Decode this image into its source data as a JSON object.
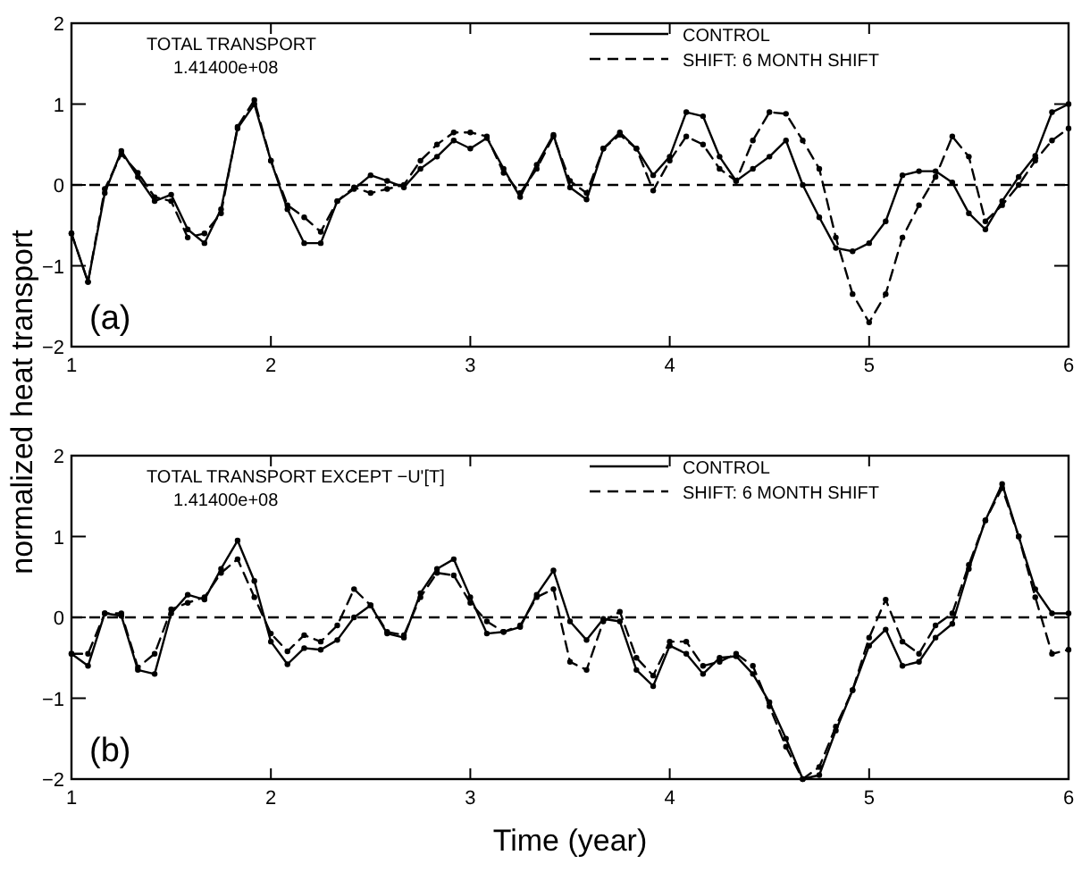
{
  "chart_data": [
    {
      "type": "line",
      "ylabel": "normalized heat transport",
      "annotations": [
        "TOTAL TRANSPORT",
        "1.41400e+08",
        "(a)"
      ],
      "x": [
        1,
        1.083,
        1.167,
        1.25,
        1.333,
        1.417,
        1.5,
        1.583,
        1.667,
        1.75,
        1.833,
        1.917,
        2,
        2.083,
        2.167,
        2.25,
        2.333,
        2.417,
        2.5,
        2.583,
        2.667,
        2.75,
        2.833,
        2.917,
        3,
        3.083,
        3.167,
        3.25,
        3.333,
        3.417,
        3.5,
        3.583,
        3.667,
        3.75,
        3.833,
        3.917,
        4,
        4.083,
        4.167,
        4.25,
        4.333,
        4.417,
        4.5,
        4.583,
        4.667,
        4.75,
        4.833,
        4.917,
        5,
        5.083,
        5.167,
        5.25,
        5.333,
        5.417,
        5.5,
        5.583,
        5.667,
        5.75,
        5.833,
        5.917,
        6
      ],
      "series": [
        {
          "name": "CONTROL",
          "color": "#000000",
          "line_style": "solid",
          "values": [
            -0.6,
            -1.2,
            -0.1,
            0.42,
            0.1,
            -0.2,
            -0.12,
            -0.55,
            -0.72,
            -0.3,
            0.7,
            1.0,
            0.3,
            -0.3,
            -0.72,
            -0.72,
            -0.2,
            -0.05,
            0.12,
            0.05,
            -0.03,
            0.2,
            0.35,
            0.55,
            0.45,
            0.58,
            0.2,
            -0.15,
            0.25,
            0.62,
            -0.03,
            -0.18,
            0.45,
            0.65,
            0.45,
            0.12,
            0.35,
            0.9,
            0.85,
            0.35,
            0.05,
            0.2,
            0.35,
            0.55,
            0.0,
            -0.4,
            -0.78,
            -0.82,
            -0.72,
            -0.45,
            0.12,
            0.17,
            0.17,
            0.03,
            -0.35,
            -0.55,
            -0.2,
            0.1,
            0.36,
            0.9,
            1.0
          ]
        },
        {
          "name": "SHIFT: 6 MONTH SHIFT",
          "color": "#000000",
          "line_style": "dashed",
          "values": [
            -0.6,
            -1.2,
            -0.05,
            0.38,
            0.15,
            -0.15,
            -0.2,
            -0.65,
            -0.6,
            -0.35,
            0.72,
            1.05,
            0.3,
            -0.25,
            -0.4,
            -0.58,
            -0.2,
            -0.03,
            -0.1,
            -0.05,
            0.0,
            0.3,
            0.5,
            0.65,
            0.65,
            0.6,
            0.15,
            -0.1,
            0.2,
            0.6,
            0.05,
            -0.1,
            0.45,
            0.62,
            0.45,
            -0.07,
            0.3,
            0.6,
            0.5,
            0.2,
            0.05,
            0.55,
            0.9,
            0.88,
            0.55,
            0.2,
            -0.65,
            -1.35,
            -1.7,
            -1.35,
            -0.65,
            -0.25,
            0.1,
            0.6,
            0.35,
            -0.45,
            -0.25,
            0.0,
            0.3,
            0.55,
            0.7
          ]
        }
      ],
      "xlim": [
        1,
        6
      ],
      "ylim": [
        -2,
        2
      ],
      "xticks": [
        1,
        2,
        3,
        4,
        5,
        6
      ],
      "yticks": [
        -2,
        -1,
        0,
        1,
        2
      ],
      "ref_lines": [
        {
          "axis": "y",
          "value": 0,
          "line_style": "dashed"
        }
      ],
      "marker": "circle",
      "legend": "top right",
      "grid": false
    },
    {
      "type": "line",
      "xlabel": "Time (year)",
      "annotations": [
        "TOTAL TRANSPORT EXCEPT −U'[T]",
        "1.41400e+08",
        "(b)"
      ],
      "x": [
        1,
        1.083,
        1.167,
        1.25,
        1.333,
        1.417,
        1.5,
        1.583,
        1.667,
        1.75,
        1.833,
        1.917,
        2,
        2.083,
        2.167,
        2.25,
        2.333,
        2.417,
        2.5,
        2.583,
        2.667,
        2.75,
        2.833,
        2.917,
        3,
        3.083,
        3.167,
        3.25,
        3.333,
        3.417,
        3.5,
        3.583,
        3.667,
        3.75,
        3.833,
        3.917,
        4,
        4.083,
        4.167,
        4.25,
        4.333,
        4.417,
        4.5,
        4.583,
        4.667,
        4.75,
        4.833,
        4.917,
        5,
        5.083,
        5.167,
        5.25,
        5.333,
        5.417,
        5.5,
        5.583,
        5.667,
        5.75,
        5.833,
        5.917,
        6
      ],
      "series": [
        {
          "name": "CONTROL",
          "color": "#000000",
          "line_style": "solid",
          "values": [
            -0.45,
            -0.6,
            0.05,
            0.02,
            -0.65,
            -0.7,
            0.05,
            0.28,
            0.22,
            0.6,
            0.95,
            0.45,
            -0.3,
            -0.58,
            -0.38,
            -0.4,
            -0.28,
            0.0,
            0.15,
            -0.2,
            -0.25,
            0.3,
            0.6,
            0.72,
            0.25,
            -0.2,
            -0.18,
            -0.12,
            0.28,
            0.58,
            -0.05,
            -0.28,
            -0.02,
            -0.05,
            -0.65,
            -0.85,
            -0.35,
            -0.45,
            -0.7,
            -0.5,
            -0.48,
            -0.7,
            -1.05,
            -1.5,
            -2.0,
            -1.95,
            -1.4,
            -0.9,
            -0.35,
            -0.15,
            -0.6,
            -0.55,
            -0.25,
            -0.08,
            0.6,
            1.2,
            1.65,
            1.0,
            0.35,
            0.05,
            0.05
          ]
        },
        {
          "name": "SHIFT: 6 MONTH SHIFT",
          "color": "#000000",
          "line_style": "dashed",
          "values": [
            -0.45,
            -0.45,
            0.05,
            0.05,
            -0.62,
            -0.45,
            0.1,
            0.18,
            0.25,
            0.55,
            0.72,
            0.25,
            -0.2,
            -0.42,
            -0.22,
            -0.3,
            -0.1,
            0.35,
            0.15,
            -0.18,
            -0.22,
            0.25,
            0.55,
            0.52,
            0.18,
            -0.05,
            -0.18,
            -0.1,
            0.25,
            0.35,
            -0.55,
            -0.65,
            -0.05,
            0.07,
            -0.5,
            -0.72,
            -0.3,
            -0.3,
            -0.6,
            -0.55,
            -0.45,
            -0.6,
            -1.1,
            -1.6,
            -2.0,
            -1.85,
            -1.35,
            -0.9,
            -0.25,
            0.22,
            -0.3,
            -0.45,
            -0.1,
            0.05,
            0.65,
            1.2,
            1.6,
            1.0,
            0.25,
            -0.45,
            -0.4
          ]
        }
      ],
      "xlim": [
        1,
        6
      ],
      "ylim": [
        -2,
        2
      ],
      "xticks": [
        1,
        2,
        3,
        4,
        5,
        6
      ],
      "yticks": [
        -2,
        -1,
        0,
        1,
        2
      ],
      "ref_lines": [
        {
          "axis": "y",
          "value": 0,
          "line_style": "dashed"
        }
      ],
      "marker": "circle",
      "legend": "top right",
      "grid": false
    }
  ]
}
